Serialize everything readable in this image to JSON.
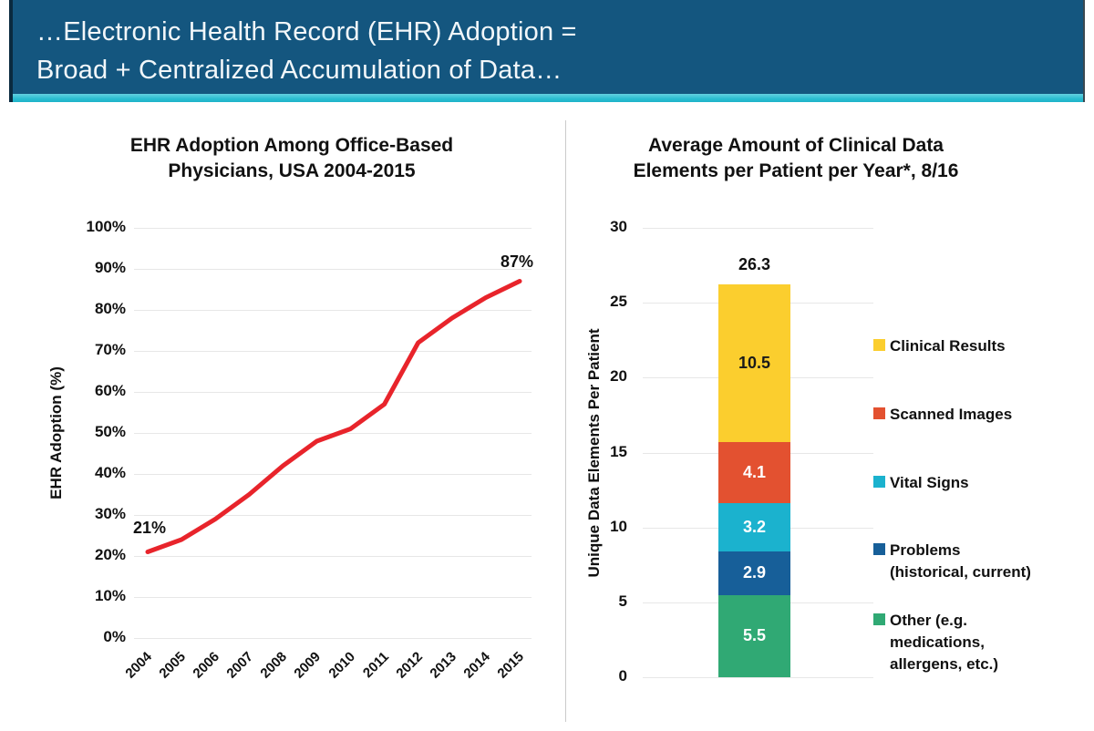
{
  "header": {
    "title_line1": "…Electronic Health Record (EHR) Adoption =",
    "title_line2": "Broad + Centralized Accumulation of Data…",
    "background_color": "#14567f",
    "accent_bar_color": "#29bcd1"
  },
  "chart_data": [
    {
      "type": "line",
      "title": "EHR Adoption Among Office-Based\nPhysicians, USA 2004-2015",
      "ylabel": "EHR Adoption (%)",
      "xlabel": "",
      "ylim": [
        0,
        100
      ],
      "ytick_labels": [
        "0%",
        "10%",
        "20%",
        "30%",
        "40%",
        "50%",
        "60%",
        "70%",
        "80%",
        "90%",
        "100%"
      ],
      "categories": [
        "2004",
        "2005",
        "2006",
        "2007",
        "2008",
        "2009",
        "2010",
        "2011",
        "2012",
        "2013",
        "2014",
        "2015"
      ],
      "series": [
        {
          "name": "EHR Adoption (%)",
          "color": "#e8242b",
          "values": [
            21,
            24,
            29,
            35,
            42,
            48,
            51,
            57,
            72,
            78,
            83,
            87
          ]
        }
      ],
      "annotations": [
        {
          "text": "21%",
          "x": "2004",
          "y": 21
        },
        {
          "text": "87%",
          "x": "2015",
          "y": 87
        }
      ],
      "grid": true,
      "legend_position": "none"
    },
    {
      "type": "stacked-bar",
      "title": "Average Amount of Clinical Data\nElements per Patient per Year*, 8/16",
      "ylabel": "Unique Data Elements Per Patient",
      "xlabel": "",
      "ylim": [
        0,
        30
      ],
      "ytick_labels": [
        "0",
        "5",
        "10",
        "15",
        "20",
        "25",
        "30"
      ],
      "total_label": "26.3",
      "segments_bottom_to_top": [
        {
          "label": "Other (e.g. medications, allergens, etc.)",
          "value": 5.5,
          "display_value": "5.5",
          "color": "#30a974",
          "text_color": "#ffffff"
        },
        {
          "label": "Problems (historical, current)",
          "value": 2.9,
          "display_value": "2.9",
          "color": "#175f99",
          "text_color": "#ffffff"
        },
        {
          "label": "Vital Signs",
          "value": 3.2,
          "display_value": "3.2",
          "color": "#1bb2ce",
          "text_color": "#ffffff"
        },
        {
          "label": "Scanned Images",
          "value": 4.1,
          "display_value": "4.1",
          "color": "#e35130",
          "text_color": "#ffffff"
        },
        {
          "label": "Clinical Results",
          "value": 10.5,
          "display_value": "10.5",
          "color": "#fbce2e",
          "text_color": "#1a1a1a"
        }
      ],
      "grid": true,
      "legend_position": "right",
      "legend": [
        {
          "label": "Clinical Results",
          "color": "#fbce2e"
        },
        {
          "label": "Scanned Images",
          "color": "#e35130"
        },
        {
          "label": "Vital Signs",
          "color": "#1bb2ce"
        },
        {
          "label": "Problems\n(historical, current)",
          "color": "#175f99"
        },
        {
          "label": "Other (e.g.\nmedications,\nallergens, etc.)",
          "color": "#30a974"
        }
      ]
    }
  ]
}
